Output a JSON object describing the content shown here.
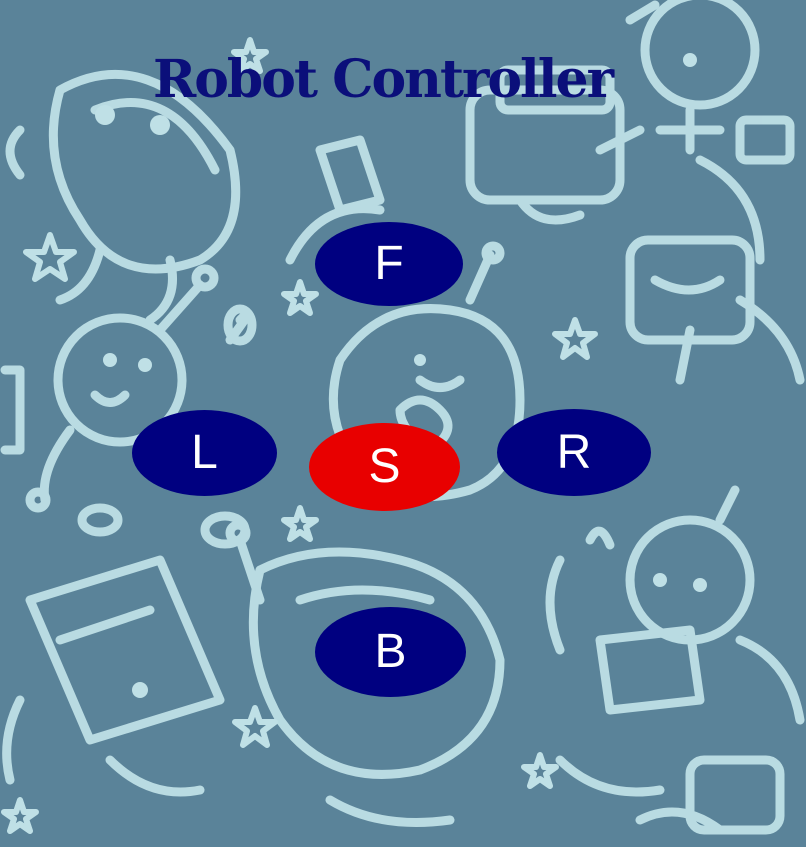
{
  "page": {
    "title": "Robot Controller"
  },
  "controls": {
    "forward_label": "F",
    "left_label": "L",
    "stop_label": "S",
    "right_label": "R",
    "back_label": "B"
  },
  "colors": {
    "background": "#5a8399",
    "doodle": "#bfe0e6",
    "title": "#0b0f7a",
    "button": "#000080",
    "stop_button": "#e80000",
    "button_text": "#ffffff"
  },
  "background_pattern": "robot-doodle-pattern"
}
